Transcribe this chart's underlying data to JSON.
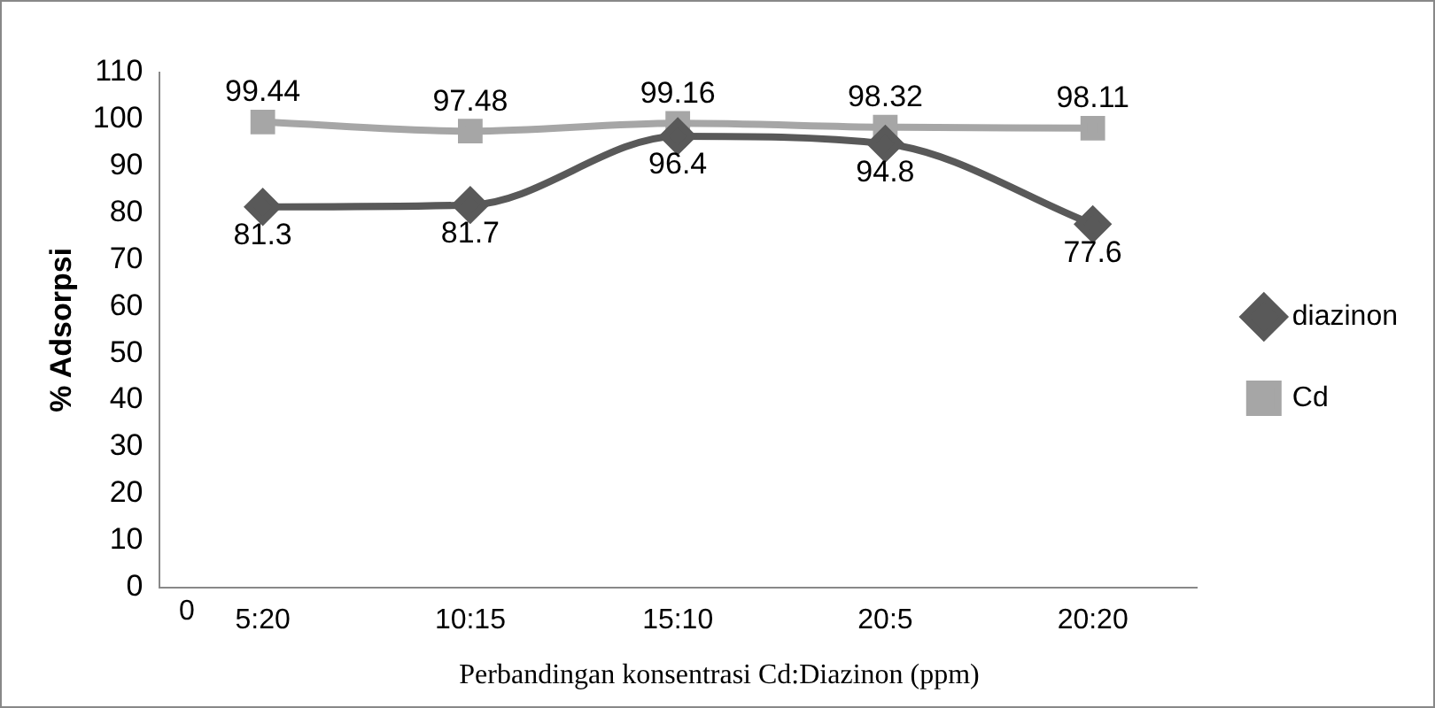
{
  "chart_data": {
    "type": "line",
    "ylabel": "% Adsorpsi",
    "xlabel": "Perbandingan konsentrasi Cd:Diazinon (ppm)",
    "categories": [
      "5:20",
      "10:15",
      "15:10",
      "20:5",
      "20:20"
    ],
    "series": [
      {
        "name": "diazinon",
        "color": "#595959",
        "marker": "diamond",
        "values": [
          81.3,
          81.7,
          96.4,
          94.8,
          77.6
        ]
      },
      {
        "name": "Cd",
        "color": "#a6a6a6",
        "marker": "square",
        "values": [
          99.44,
          97.48,
          99.16,
          98.32,
          98.11
        ]
      }
    ],
    "ylim": [
      0,
      110
    ],
    "yticks": [
      0,
      10,
      20,
      30,
      40,
      50,
      60,
      70,
      80,
      90,
      100,
      110
    ],
    "grid": false,
    "legend": "right",
    "data_labels": true,
    "annotations": [
      "0"
    ]
  }
}
